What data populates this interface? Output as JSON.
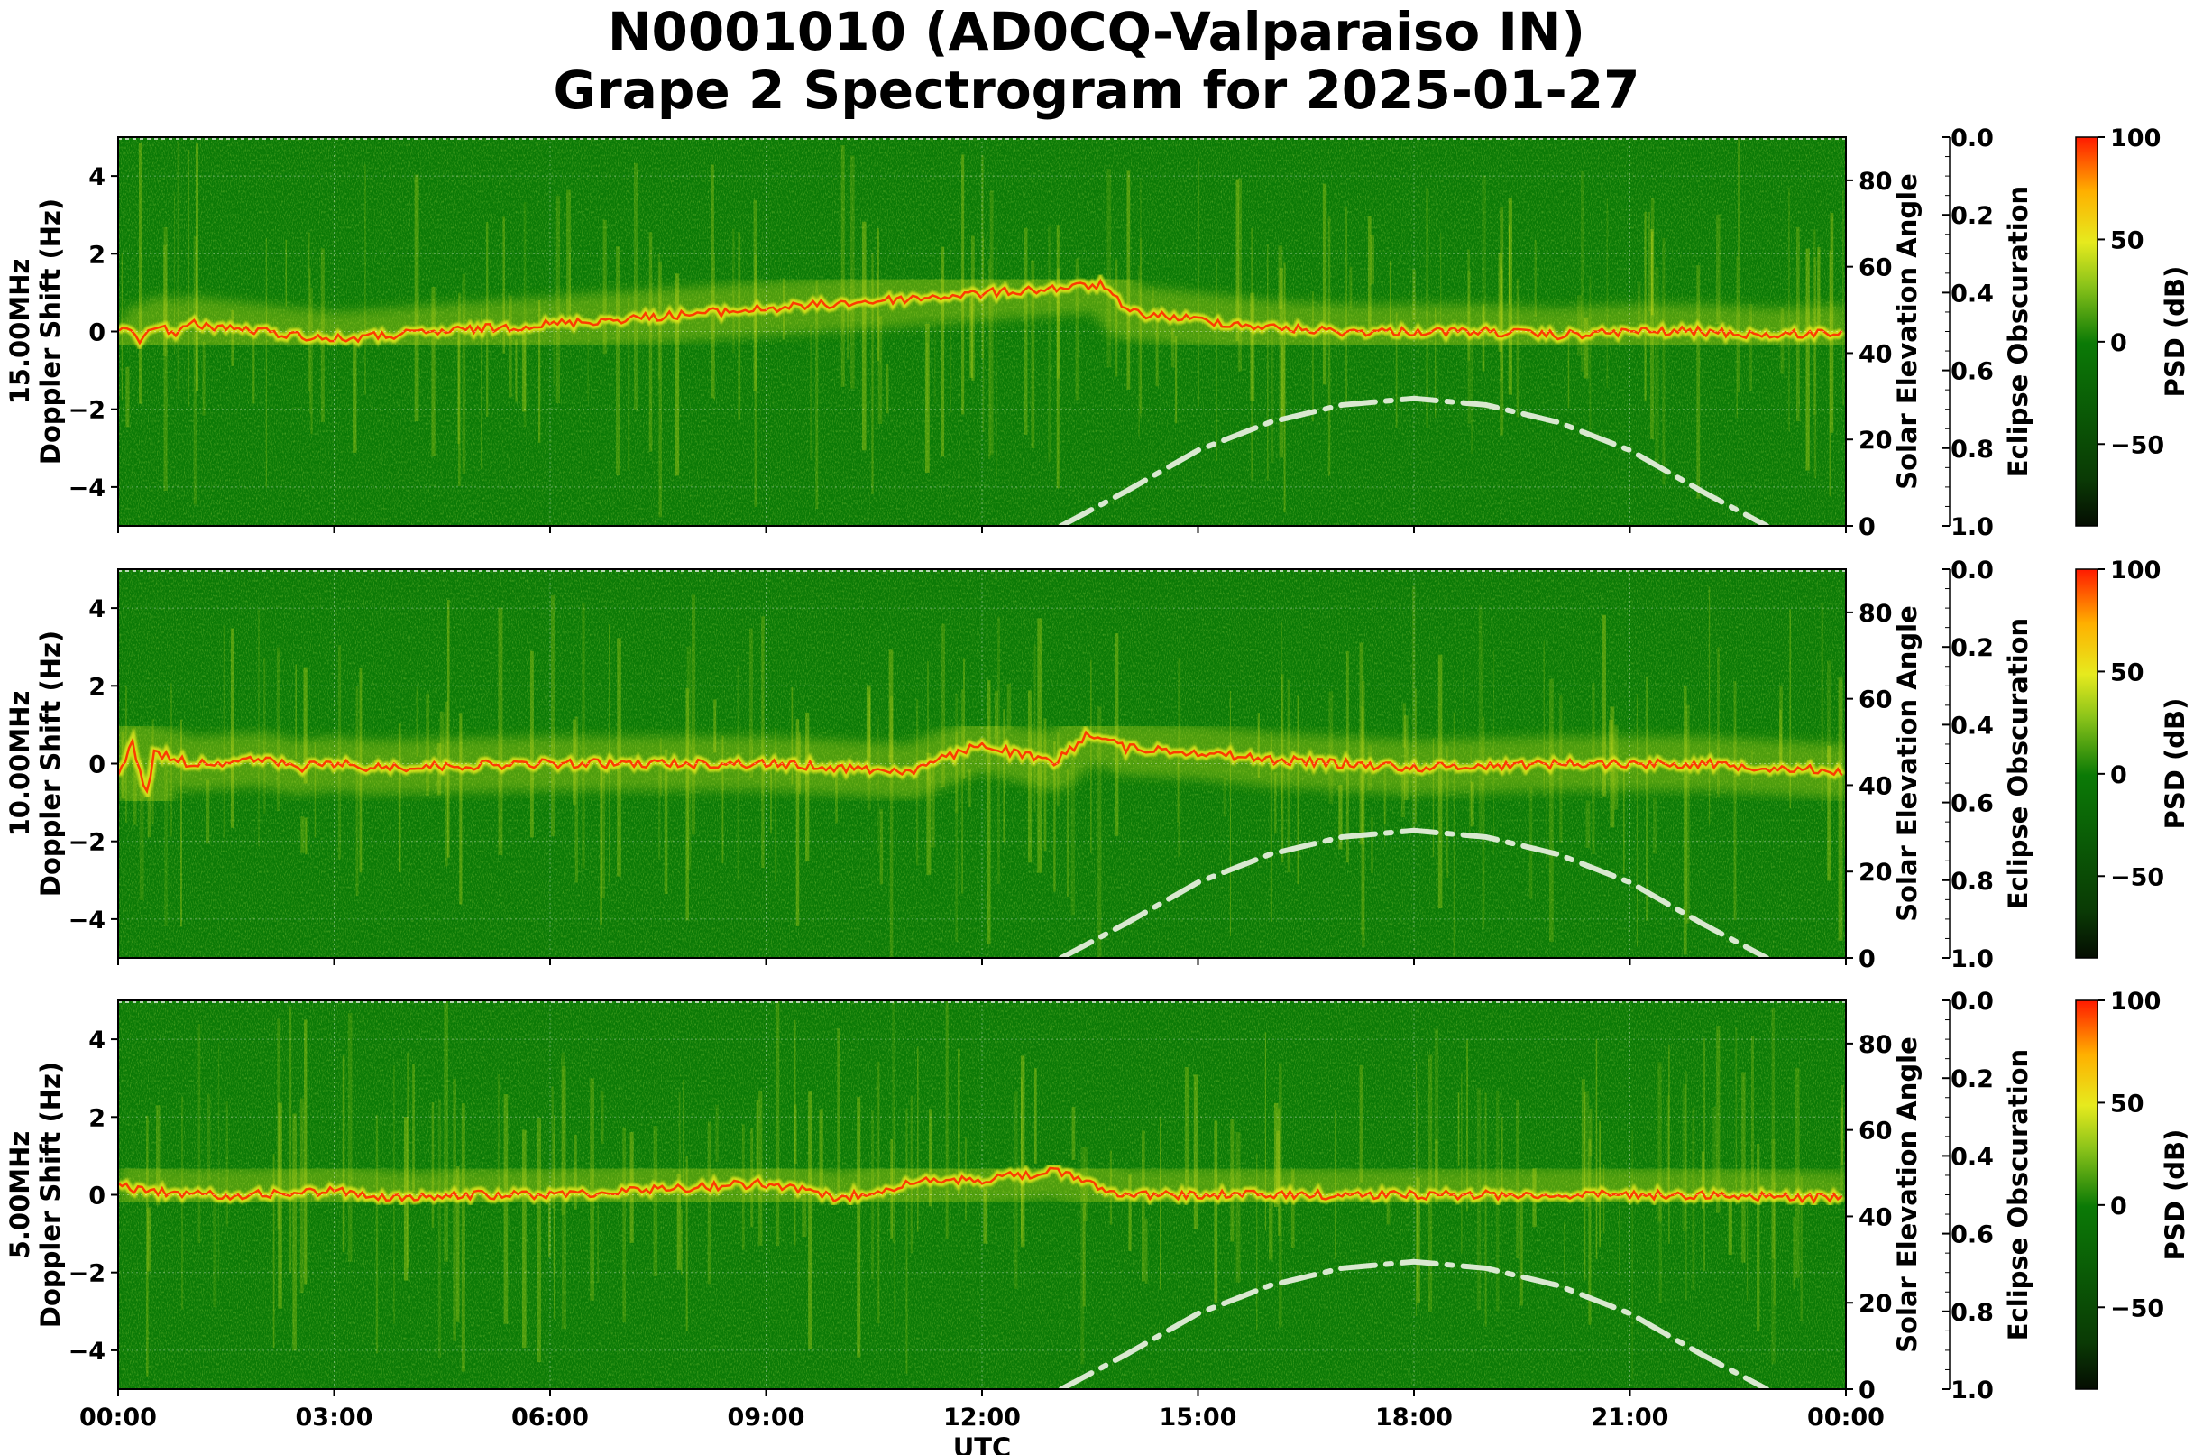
{
  "title_line1": "N0001010 (AD0CQ-Valparaiso IN)",
  "title_line2": "Grape 2 Spectrogram for 2025-01-27",
  "colors": {
    "background_green": "#0b7a06",
    "mid_yellow": "#e6ea1e",
    "peak_red": "#ff2a00",
    "solar_curve": "#d9e8d0"
  },
  "chart_data": [
    {
      "type": "heatmap",
      "panel": "15MHz",
      "ylabel_line1": "15.00MHz",
      "ylabel_line2": "Doppler Shift (Hz)",
      "xlabel": "",
      "ylim": [
        -5,
        5
      ],
      "y_ticks": [
        "4",
        "2",
        "0",
        "−2",
        "−4"
      ],
      "y_tick_values": [
        4,
        2,
        0,
        -2,
        -4
      ],
      "x_ticks": [
        "00:00",
        "03:00",
        "06:00",
        "09:00",
        "12:00",
        "15:00",
        "18:00",
        "21:00",
        "00:00"
      ],
      "x_tick_hours": [
        0,
        3,
        6,
        9,
        12,
        15,
        18,
        21,
        24
      ],
      "right_axis_label": "Solar Elevation Angle",
      "right_axis_ticks": [
        0,
        20,
        40,
        60,
        80
      ],
      "right_axis_range": [
        0,
        90
      ],
      "solar_elevation": {
        "hours": [
          13.1,
          14,
          15,
          16,
          17,
          18,
          19,
          20,
          21,
          22,
          22.9
        ],
        "values": [
          0,
          8,
          17.5,
          24,
          28,
          29.5,
          28,
          24,
          17.5,
          8,
          0
        ]
      },
      "trace": {
        "hours": [
          0,
          0.3,
          0.6,
          0.8,
          1.0,
          2.0,
          3.0,
          13.7,
          14,
          15,
          16,
          17,
          18,
          19,
          20,
          21,
          22,
          23,
          24
        ],
        "doppler_hz": [
          0.1,
          -0.2,
          0.2,
          -0.1,
          0.2,
          0.0,
          -0.2,
          1.2,
          0.5,
          0.3,
          0.1,
          0.0,
          0.0,
          0.0,
          -0.1,
          0.0,
          0.0,
          -0.1,
          0.0
        ]
      },
      "eclipse_label": "Eclipse Obscuration",
      "eclipse_ticks": [
        "0.0",
        "0.2",
        "0.4",
        "0.6",
        "0.8",
        "1.0"
      ],
      "colorbar_label": "PSD (dB)",
      "colorbar_ticks": [
        "100",
        "50",
        "0",
        "−50"
      ],
      "colorbar_tick_values": [
        100,
        50,
        0,
        -50
      ],
      "colorbar_range": [
        -90,
        100
      ]
    },
    {
      "type": "heatmap",
      "panel": "10MHz",
      "ylabel_line1": "10.00MHz",
      "ylabel_line2": "Doppler Shift (Hz)",
      "xlabel": "",
      "ylim": [
        -5,
        5
      ],
      "y_ticks": [
        "4",
        "2",
        "0",
        "−2",
        "−4"
      ],
      "y_tick_values": [
        4,
        2,
        0,
        -2,
        -4
      ],
      "x_ticks": [
        "00:00",
        "03:00",
        "06:00",
        "09:00",
        "12:00",
        "15:00",
        "18:00",
        "21:00",
        "00:00"
      ],
      "x_tick_hours": [
        0,
        3,
        6,
        9,
        12,
        15,
        18,
        21,
        24
      ],
      "right_axis_label": "Solar Elevation Angle",
      "right_axis_ticks": [
        0,
        20,
        40,
        60,
        80
      ],
      "right_axis_range": [
        0,
        90
      ],
      "solar_elevation": {
        "hours": [
          13.1,
          14,
          15,
          16,
          17,
          18,
          19,
          20,
          21,
          22,
          22.9
        ],
        "values": [
          0,
          8,
          17.5,
          24,
          28,
          29.5,
          28,
          24,
          17.5,
          8,
          0
        ]
      },
      "trace": {
        "hours": [
          0,
          0.2,
          0.4,
          0.5,
          1.0,
          2.0,
          2.5,
          3.0,
          3.5,
          6.0,
          9.0,
          11.0,
          12.0,
          13.0,
          13.5,
          14.0,
          15.0,
          16.0,
          18.0,
          20.0,
          22.0,
          24.0
        ],
        "doppler_hz": [
          -0.3,
          0.5,
          -0.8,
          0.3,
          0.0,
          0.1,
          -0.1,
          0.0,
          -0.1,
          0.0,
          0.0,
          -0.2,
          0.5,
          0.0,
          0.8,
          0.4,
          0.3,
          0.1,
          -0.1,
          0.0,
          0.0,
          -0.2
        ]
      },
      "eclipse_label": "Eclipse Obscuration",
      "eclipse_ticks": [
        "0.0",
        "0.2",
        "0.4",
        "0.6",
        "0.8",
        "1.0"
      ],
      "colorbar_label": "PSD (dB)",
      "colorbar_ticks": [
        "100",
        "50",
        "0",
        "−50"
      ],
      "colorbar_tick_values": [
        100,
        50,
        0,
        -50
      ],
      "colorbar_range": [
        -90,
        100
      ]
    },
    {
      "type": "heatmap",
      "panel": "5MHz",
      "ylabel_line1": "5.00MHz",
      "ylabel_line2": "Doppler Shift (Hz)",
      "xlabel": "UTC",
      "ylim": [
        -5,
        5
      ],
      "y_ticks": [
        "4",
        "2",
        "0",
        "−2",
        "−4"
      ],
      "y_tick_values": [
        4,
        2,
        0,
        -2,
        -4
      ],
      "x_ticks": [
        "00:00",
        "03:00",
        "06:00",
        "09:00",
        "12:00",
        "15:00",
        "18:00",
        "21:00",
        "00:00"
      ],
      "x_tick_hours": [
        0,
        3,
        6,
        9,
        12,
        15,
        18,
        21,
        24
      ],
      "right_axis_label": "Solar Elevation Angle",
      "right_axis_ticks": [
        0,
        20,
        40,
        60,
        80
      ],
      "right_axis_range": [
        0,
        90
      ],
      "solar_elevation": {
        "hours": [
          13.1,
          14,
          15,
          16,
          17,
          18,
          19,
          20,
          21,
          22,
          22.9
        ],
        "values": [
          0,
          8,
          17.5,
          24,
          28,
          29.5,
          28,
          24,
          17.5,
          8,
          0
        ]
      },
      "trace": {
        "hours": [
          0,
          1,
          2,
          3,
          4,
          5,
          6,
          7,
          8,
          9,
          10,
          11,
          12,
          13,
          14,
          18,
          22,
          24
        ],
        "doppler_hz": [
          0.2,
          0.0,
          0.0,
          0.1,
          -0.1,
          0.0,
          0.0,
          0.1,
          0.2,
          0.3,
          -0.1,
          0.3,
          0.4,
          0.6,
          0.0,
          0.0,
          0.0,
          -0.1
        ]
      },
      "eclipse_label": "Eclipse Obscuration",
      "eclipse_ticks": [
        "0.0",
        "0.2",
        "0.4",
        "0.6",
        "0.8",
        "1.0"
      ],
      "colorbar_label": "PSD (dB)",
      "colorbar_ticks": [
        "100",
        "50",
        "0",
        "−50"
      ],
      "colorbar_tick_values": [
        100,
        50,
        0,
        -50
      ],
      "colorbar_range": [
        -90,
        100
      ]
    }
  ]
}
